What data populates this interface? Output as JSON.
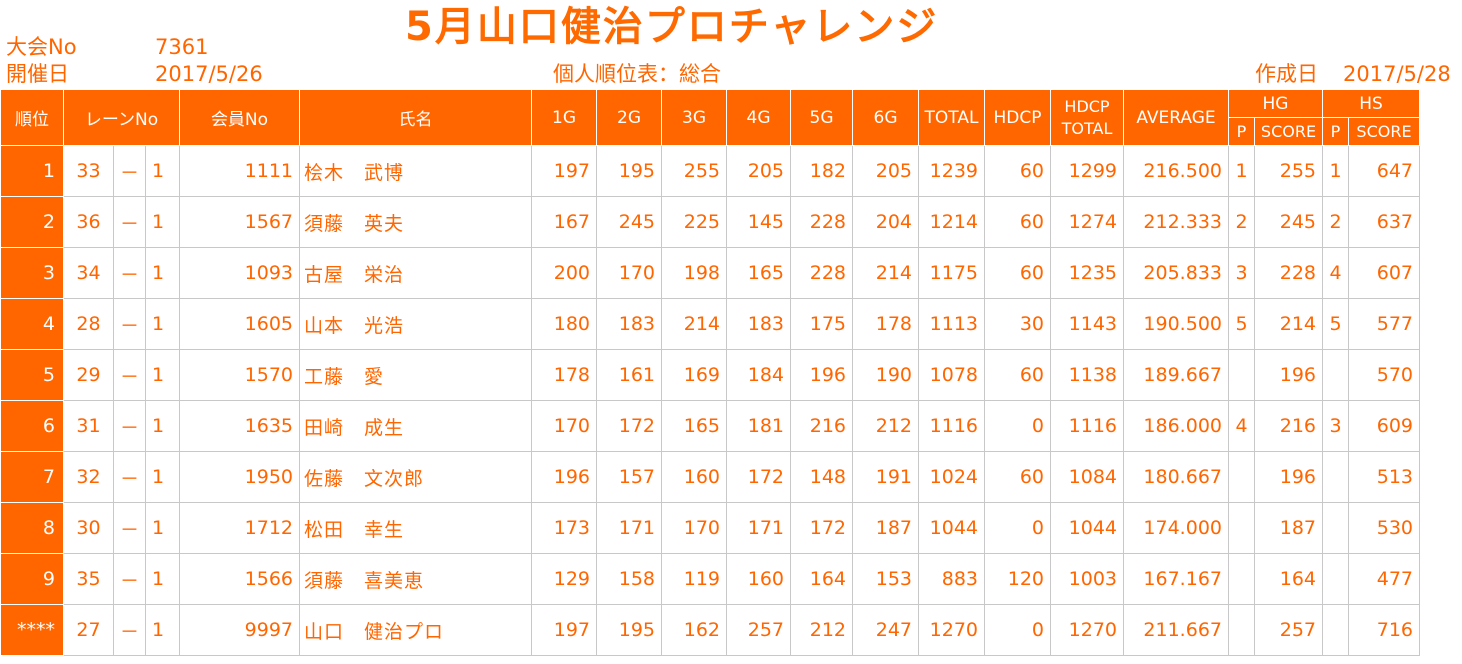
{
  "title": "5月山口健治プロチャレンジ",
  "meta": {
    "event_no_label": "大会No",
    "event_no": "7361",
    "date_label": "開催日",
    "date": "2017/5/26",
    "report_label": "個人順位表：総合",
    "created_label": "作成日",
    "created_date": "2017/5/28"
  },
  "table": {
    "headers": {
      "rank": "順位",
      "lane": "レーンNo",
      "member": "会員No",
      "name": "氏名",
      "g1": "1G",
      "g2": "2G",
      "g3": "3G",
      "g4": "4G",
      "g5": "5G",
      "g6": "6G",
      "total": "TOTAL",
      "hdcp": "HDCP",
      "hdcp_total_1": "HDCP",
      "hdcp_total_2": "TOTAL",
      "average": "AVERAGE",
      "hg": "HG",
      "hs": "HS",
      "hg_p": "P",
      "hg_score": "SCORE",
      "hs_p": "P",
      "hs_score": "SCORE"
    },
    "rows": [
      {
        "rank": "1",
        "lane": "33",
        "dash": "－",
        "lane2": "1",
        "member": "1111",
        "name": "桧木　武博",
        "g1": "197",
        "g2": "195",
        "g3": "255",
        "g4": "205",
        "g5": "182",
        "g6": "205",
        "total": "1239",
        "hdcp": "60",
        "hdcp_total": "1299",
        "average": "216.500",
        "hg_p": "1",
        "hg_score": "255",
        "hs_p": "1",
        "hs_score": "647"
      },
      {
        "rank": "2",
        "lane": "36",
        "dash": "－",
        "lane2": "1",
        "member": "1567",
        "name": "須藤　英夫",
        "g1": "167",
        "g2": "245",
        "g3": "225",
        "g4": "145",
        "g5": "228",
        "g6": "204",
        "total": "1214",
        "hdcp": "60",
        "hdcp_total": "1274",
        "average": "212.333",
        "hg_p": "2",
        "hg_score": "245",
        "hs_p": "2",
        "hs_score": "637"
      },
      {
        "rank": "3",
        "lane": "34",
        "dash": "－",
        "lane2": "1",
        "member": "1093",
        "name": "古屋　栄治",
        "g1": "200",
        "g2": "170",
        "g3": "198",
        "g4": "165",
        "g5": "228",
        "g6": "214",
        "total": "1175",
        "hdcp": "60",
        "hdcp_total": "1235",
        "average": "205.833",
        "hg_p": "3",
        "hg_score": "228",
        "hs_p": "4",
        "hs_score": "607"
      },
      {
        "rank": "4",
        "lane": "28",
        "dash": "－",
        "lane2": "1",
        "member": "1605",
        "name": "山本　光浩",
        "g1": "180",
        "g2": "183",
        "g3": "214",
        "g4": "183",
        "g5": "175",
        "g6": "178",
        "total": "1113",
        "hdcp": "30",
        "hdcp_total": "1143",
        "average": "190.500",
        "hg_p": "5",
        "hg_score": "214",
        "hs_p": "5",
        "hs_score": "577"
      },
      {
        "rank": "5",
        "lane": "29",
        "dash": "－",
        "lane2": "1",
        "member": "1570",
        "name": "工藤　愛",
        "g1": "178",
        "g2": "161",
        "g3": "169",
        "g4": "184",
        "g5": "196",
        "g6": "190",
        "total": "1078",
        "hdcp": "60",
        "hdcp_total": "1138",
        "average": "189.667",
        "hg_p": "",
        "hg_score": "196",
        "hs_p": "",
        "hs_score": "570"
      },
      {
        "rank": "6",
        "lane": "31",
        "dash": "－",
        "lane2": "1",
        "member": "1635",
        "name": "田崎　成生",
        "g1": "170",
        "g2": "172",
        "g3": "165",
        "g4": "181",
        "g5": "216",
        "g6": "212",
        "total": "1116",
        "hdcp": "0",
        "hdcp_total": "1116",
        "average": "186.000",
        "hg_p": "4",
        "hg_score": "216",
        "hs_p": "3",
        "hs_score": "609"
      },
      {
        "rank": "7",
        "lane": "32",
        "dash": "－",
        "lane2": "1",
        "member": "1950",
        "name": "佐藤　文次郎",
        "g1": "196",
        "g2": "157",
        "g3": "160",
        "g4": "172",
        "g5": "148",
        "g6": "191",
        "total": "1024",
        "hdcp": "60",
        "hdcp_total": "1084",
        "average": "180.667",
        "hg_p": "",
        "hg_score": "196",
        "hs_p": "",
        "hs_score": "513"
      },
      {
        "rank": "8",
        "lane": "30",
        "dash": "－",
        "lane2": "1",
        "member": "1712",
        "name": "松田　幸生",
        "g1": "173",
        "g2": "171",
        "g3": "170",
        "g4": "171",
        "g5": "172",
        "g6": "187",
        "total": "1044",
        "hdcp": "0",
        "hdcp_total": "1044",
        "average": "174.000",
        "hg_p": "",
        "hg_score": "187",
        "hs_p": "",
        "hs_score": "530"
      },
      {
        "rank": "9",
        "lane": "35",
        "dash": "－",
        "lane2": "1",
        "member": "1566",
        "name": "須藤　喜美恵",
        "g1": "129",
        "g2": "158",
        "g3": "119",
        "g4": "160",
        "g5": "164",
        "g6": "153",
        "total": "883",
        "hdcp": "120",
        "hdcp_total": "1003",
        "average": "167.167",
        "hg_p": "",
        "hg_score": "164",
        "hs_p": "",
        "hs_score": "477"
      },
      {
        "rank": "****",
        "lane": "27",
        "dash": "－",
        "lane2": "1",
        "member": "9997",
        "name": "山口　健治プロ",
        "g1": "197",
        "g2": "195",
        "g3": "162",
        "g4": "257",
        "g5": "212",
        "g6": "247",
        "total": "1270",
        "hdcp": "0",
        "hdcp_total": "1270",
        "average": "211.667",
        "hg_p": "",
        "hg_score": "257",
        "hs_p": "",
        "hs_score": "716"
      }
    ]
  }
}
